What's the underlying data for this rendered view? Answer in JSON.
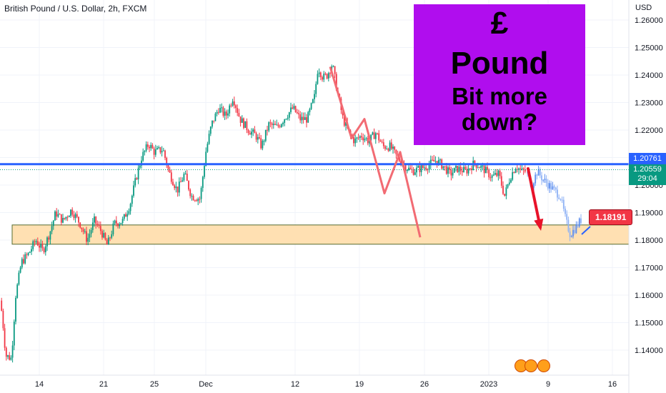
{
  "header": {
    "title": "British Pound / U.S. Dollar, 2h, FXCM",
    "currency": "USD"
  },
  "promo": {
    "line1": "£",
    "line2": "Pound",
    "line3": "Bit more",
    "line4": "down?",
    "background": "#b00dee"
  },
  "tags": {
    "blue_level": "1.20761",
    "last_price": "1.20559",
    "countdown": "29:04",
    "callout": "1.18191"
  },
  "colors": {
    "up": "#089981",
    "down": "#f23645",
    "level": "#2962ff",
    "zone": "#ffe0b2",
    "zone_border": "#556b2f",
    "projection": "#f26b73",
    "recent": "#5b8def"
  },
  "chart_data": {
    "type": "candlestick",
    "symbol": "British Pound / U.S. Dollar, 2h, FXCM",
    "y_ticks": [
      1.14,
      1.15,
      1.16,
      1.17,
      1.18,
      1.19,
      1.2,
      1.21,
      1.22,
      1.23,
      1.24,
      1.25,
      1.26
    ],
    "y_tick_labels": [
      "1.14000",
      "1.15000",
      "1.16000",
      "1.17000",
      "1.18000",
      "1.19000",
      "1.20000",
      "1.21000",
      "1.22000",
      "1.23000",
      "1.24000",
      "1.25000",
      "1.26000"
    ],
    "ylim": [
      1.132,
      1.266
    ],
    "x_tick_labels": [
      "14",
      "21",
      "25",
      "Dec",
      "12",
      "19",
      "26",
      "2023",
      "9",
      "16"
    ],
    "price_path": [
      [
        0,
        1.158
      ],
      [
        3,
        1.153
      ],
      [
        8,
        1.138
      ],
      [
        16,
        1.137
      ],
      [
        22,
        1.16
      ],
      [
        30,
        1.172
      ],
      [
        40,
        1.175
      ],
      [
        50,
        1.18
      ],
      [
        60,
        1.176
      ],
      [
        70,
        1.183
      ],
      [
        78,
        1.19
      ],
      [
        88,
        1.187
      ],
      [
        100,
        1.191
      ],
      [
        112,
        1.186
      ],
      [
        122,
        1.18
      ],
      [
        132,
        1.187
      ],
      [
        142,
        1.183
      ],
      [
        150,
        1.178
      ],
      [
        160,
        1.186
      ],
      [
        172,
        1.187
      ],
      [
        182,
        1.193
      ],
      [
        190,
        1.202
      ],
      [
        198,
        1.21
      ],
      [
        208,
        1.215
      ],
      [
        216,
        1.212
      ],
      [
        228,
        1.213
      ],
      [
        236,
        1.205
      ],
      [
        248,
        1.198
      ],
      [
        258,
        1.204
      ],
      [
        268,
        1.196
      ],
      [
        280,
        1.195
      ],
      [
        288,
        1.212
      ],
      [
        296,
        1.222
      ],
      [
        306,
        1.228
      ],
      [
        316,
        1.225
      ],
      [
        326,
        1.232
      ],
      [
        336,
        1.224
      ],
      [
        348,
        1.22
      ],
      [
        358,
        1.218
      ],
      [
        366,
        1.214
      ],
      [
        376,
        1.222
      ],
      [
        388,
        1.221
      ],
      [
        400,
        1.225
      ],
      [
        410,
        1.228
      ],
      [
        420,
        1.224
      ],
      [
        430,
        1.224
      ],
      [
        440,
        1.232
      ],
      [
        445,
        1.243
      ],
      [
        452,
        1.239
      ],
      [
        458,
        1.24
      ],
      [
        465,
        1.244
      ],
      [
        472,
        1.234
      ],
      [
        480,
        1.224
      ],
      [
        488,
        1.219
      ],
      [
        496,
        1.216
      ],
      [
        506,
        1.218
      ],
      [
        516,
        1.216
      ],
      [
        526,
        1.219
      ],
      [
        536,
        1.214
      ],
      [
        546,
        1.214
      ],
      [
        556,
        1.21
      ],
      [
        566,
        1.207
      ],
      [
        576,
        1.205
      ],
      [
        588,
        1.206
      ],
      [
        598,
        1.207
      ],
      [
        610,
        1.209
      ],
      [
        620,
        1.207
      ],
      [
        630,
        1.204
      ],
      [
        640,
        1.206
      ],
      [
        652,
        1.205
      ],
      [
        664,
        1.208
      ],
      [
        676,
        1.206
      ],
      [
        688,
        1.203
      ],
      [
        698,
        1.204
      ],
      [
        706,
        1.196
      ],
      [
        714,
        1.203
      ],
      [
        722,
        1.207
      ],
      [
        730,
        1.205
      ],
      [
        736,
        1.205
      ]
    ],
    "recent_path": [
      [
        736,
        1.205
      ],
      [
        744,
        1.2
      ],
      [
        752,
        1.205
      ],
      [
        760,
        1.202
      ],
      [
        768,
        1.2
      ],
      [
        776,
        1.198
      ],
      [
        784,
        1.196
      ],
      [
        792,
        1.187
      ],
      [
        798,
        1.182
      ],
      [
        804,
        1.184
      ],
      [
        812,
        1.187
      ],
      [
        815,
        1.188
      ]
    ],
    "levels": [
      {
        "label": "1.20761",
        "value": 1.2076
      }
    ],
    "zone": [
      1.1785,
      1.1855
    ],
    "annotations": [
      "£",
      "Pound",
      "Bit more",
      "down?",
      "1.18191"
    ]
  }
}
